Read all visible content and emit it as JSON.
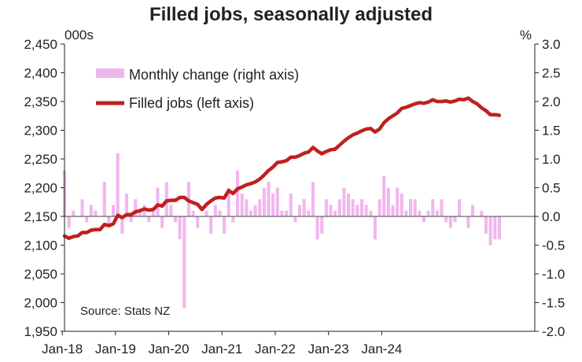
{
  "chart_data": {
    "type": "bar+line",
    "title": "Filled jobs, seasonally adjusted",
    "left_unit": "000s",
    "right_unit": "%",
    "left_axis": {
      "min": 1950,
      "max": 2450,
      "ticks": [
        "1,950",
        "2,000",
        "2,050",
        "2,100",
        "2,150",
        "2,200",
        "2,250",
        "2,300",
        "2,350",
        "2,400",
        "2,450"
      ]
    },
    "right_axis": {
      "min": -2.0,
      "max": 3.0,
      "ticks": [
        "-2.0",
        "-1.5",
        "-1.0",
        "-0.5",
        "0.0",
        "0.5",
        "1.0",
        "1.5",
        "2.0",
        "2.5",
        "3.0"
      ]
    },
    "x_ticks": [
      "Jan-18",
      "Jan-19",
      "Jan-20",
      "Jan-21",
      "Jan-22",
      "Jan-23",
      "Jan-24"
    ],
    "start_month": "2018-01",
    "colors": {
      "line": "#c0201f",
      "bars": "#f2b6ee",
      "zero_line": "#444444",
      "axis": "#222222"
    },
    "legend": [
      {
        "label": "Monthly change (right axis)",
        "type": "bar"
      },
      {
        "label": "Filled jobs (left axis)",
        "type": "line"
      }
    ],
    "source": "Source: Stats NZ",
    "series": [
      {
        "name": "Monthly change (right axis)",
        "axis": "right",
        "values": [
          0.8,
          -0.2,
          0.1,
          0.0,
          0.3,
          -0.1,
          0.2,
          0.1,
          0.0,
          0.6,
          -0.2,
          0.2,
          1.1,
          -0.3,
          0.4,
          -0.1,
          0.3,
          0.1,
          0.2,
          -0.1,
          0.1,
          0.5,
          -0.2,
          0.6,
          0.2,
          -0.1,
          -0.4,
          -1.6,
          0.6,
          0.1,
          -0.2,
          0.0,
          0.1,
          -0.3,
          0.2,
          0.1,
          -0.3,
          0.5,
          -0.1,
          0.8,
          0.4,
          0.3,
          0.1,
          0.2,
          0.3,
          0.5,
          0.6,
          0.4,
          0.5,
          0.1,
          0.1,
          0.4,
          -0.1,
          0.2,
          0.3,
          0.1,
          0.6,
          -0.4,
          -0.3,
          0.3,
          0.2,
          0.1,
          0.3,
          0.5,
          0.4,
          0.3,
          0.2,
          0.3,
          0.2,
          0.1,
          -0.4,
          0.3,
          0.7,
          0.5,
          0.2,
          0.5,
          0.4,
          0.1,
          0.3,
          0.3,
          0.1,
          -0.1,
          0.1,
          0.3,
          0.1,
          0.3,
          -0.1,
          -0.2,
          -0.1,
          0.3,
          0.0,
          -0.2,
          0.2,
          0.0,
          0.1,
          -0.3,
          -0.5,
          -0.4,
          -0.4
        ],
        "last_month_index": 98
      },
      {
        "name": "Filled jobs (left axis)",
        "axis": "left",
        "points": [
          [
            0,
            2116
          ],
          [
            1,
            2112
          ],
          [
            2,
            2115
          ],
          [
            3,
            2116
          ],
          [
            4,
            2122
          ],
          [
            5,
            2122
          ],
          [
            6,
            2126
          ],
          [
            7,
            2127
          ],
          [
            8,
            2127
          ],
          [
            9,
            2136
          ],
          [
            10,
            2134
          ],
          [
            11,
            2137
          ],
          [
            12,
            2152
          ],
          [
            13,
            2148
          ],
          [
            14,
            2153
          ],
          [
            15,
            2153
          ],
          [
            16,
            2158
          ],
          [
            17,
            2160
          ],
          [
            18,
            2163
          ],
          [
            19,
            2161
          ],
          [
            20,
            2162
          ],
          [
            21,
            2170
          ],
          [
            22,
            2168
          ],
          [
            23,
            2177
          ],
          [
            24,
            2178
          ],
          [
            25,
            2178
          ],
          [
            26,
            2183
          ],
          [
            27,
            2183
          ],
          [
            28,
            2177
          ],
          [
            29,
            2174
          ],
          [
            30,
            2171
          ],
          [
            31,
            2162
          ],
          [
            32,
            2171
          ],
          [
            33,
            2177
          ],
          [
            34,
            2182
          ],
          [
            35,
            2183
          ],
          [
            36,
            2182
          ],
          [
            37,
            2195
          ],
          [
            38,
            2190
          ],
          [
            39,
            2198
          ],
          [
            40,
            2201
          ],
          [
            41,
            2205
          ],
          [
            42,
            2207
          ],
          [
            43,
            2210
          ],
          [
            44,
            2215
          ],
          [
            45,
            2222
          ],
          [
            46,
            2230
          ],
          [
            47,
            2236
          ],
          [
            48,
            2244
          ],
          [
            49,
            2245
          ],
          [
            50,
            2247
          ],
          [
            51,
            2253
          ],
          [
            52,
            2253
          ],
          [
            53,
            2256
          ],
          [
            54,
            2260
          ],
          [
            55,
            2262
          ],
          [
            56,
            2270
          ],
          [
            57,
            2264
          ],
          [
            58,
            2259
          ],
          [
            59,
            2263
          ],
          [
            60,
            2266
          ],
          [
            61,
            2267
          ],
          [
            62,
            2274
          ],
          [
            63,
            2281
          ],
          [
            64,
            2287
          ],
          [
            65,
            2292
          ],
          [
            66,
            2295
          ],
          [
            67,
            2299
          ],
          [
            68,
            2302
          ],
          [
            69,
            2303
          ],
          [
            70,
            2297
          ],
          [
            71,
            2302
          ],
          [
            72,
            2313
          ],
          [
            73,
            2320
          ],
          [
            74,
            2325
          ],
          [
            75,
            2330
          ],
          [
            76,
            2338
          ],
          [
            77,
            2340
          ],
          [
            78,
            2343
          ],
          [
            79,
            2346
          ],
          [
            80,
            2348
          ],
          [
            81,
            2347
          ],
          [
            82,
            2349
          ],
          [
            83,
            2353
          ],
          [
            84,
            2350
          ],
          [
            85,
            2350
          ],
          [
            86,
            2351
          ],
          [
            87,
            2349
          ],
          [
            88,
            2351
          ],
          [
            89,
            2354
          ],
          [
            90,
            2353
          ],
          [
            91,
            2356
          ],
          [
            92,
            2350
          ],
          [
            93,
            2346
          ],
          [
            94,
            2339
          ],
          [
            95,
            2334
          ],
          [
            96,
            2327
          ],
          [
            97,
            2327
          ],
          [
            98,
            2326
          ]
        ]
      }
    ]
  }
}
